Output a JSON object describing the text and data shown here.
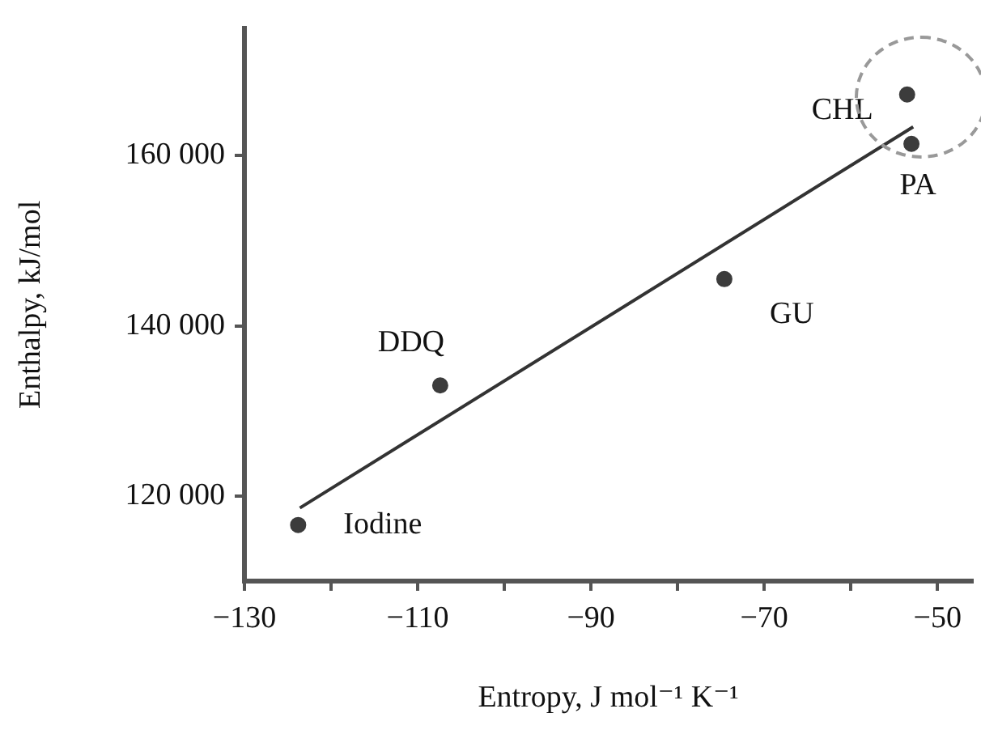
{
  "chart_data": {
    "type": "scatter",
    "xlabel": "Entropy, J mol⁻¹ K⁻¹",
    "ylabel": "Enthalpy, kJ/mol",
    "xlim": [
      -130,
      -46
    ],
    "ylim": [
      110000,
      175000
    ],
    "xticks": [
      {
        "value": -130,
        "label": "−130"
      },
      {
        "value": -120,
        "label": null
      },
      {
        "value": -110,
        "label": "−110"
      },
      {
        "value": -100,
        "label": null
      },
      {
        "value": -90,
        "label": "−90"
      },
      {
        "value": -80,
        "label": null
      },
      {
        "value": -70,
        "label": "−70"
      },
      {
        "value": -60,
        "label": null
      },
      {
        "value": -50,
        "label": "−50"
      }
    ],
    "yticks": [
      {
        "value": 120000,
        "label": "120 000"
      },
      {
        "value": 140000,
        "label": "140 000"
      },
      {
        "value": 160000,
        "label": "160 000"
      }
    ],
    "series": [
      {
        "type": "scatter",
        "color": "#3c3c3c",
        "marker": "circle",
        "x": [
          -123.8,
          -107.4,
          -74.6,
          -53.5,
          -53
        ],
        "values": [
          116600,
          133000,
          145500,
          167200,
          161400
        ]
      },
      {
        "type": "line",
        "color": "#333333",
        "marker": "none",
        "line_style": "solid",
        "x": [
          -123.6,
          -52.8
        ],
        "values": [
          118600,
          163400
        ]
      }
    ],
    "annotations": [
      {
        "text": "Iodine",
        "x": -123.8,
        "y": 116600
      },
      {
        "text": "DDQ",
        "x": -107.4,
        "y": 133000
      },
      {
        "text": "GU",
        "x": -74.6,
        "y": 145500
      },
      {
        "text": "CHL",
        "x": -53.5,
        "y": 167200
      },
      {
        "text": "PA",
        "x": -53,
        "y": 161400
      }
    ],
    "grid": false,
    "legend": false
  }
}
